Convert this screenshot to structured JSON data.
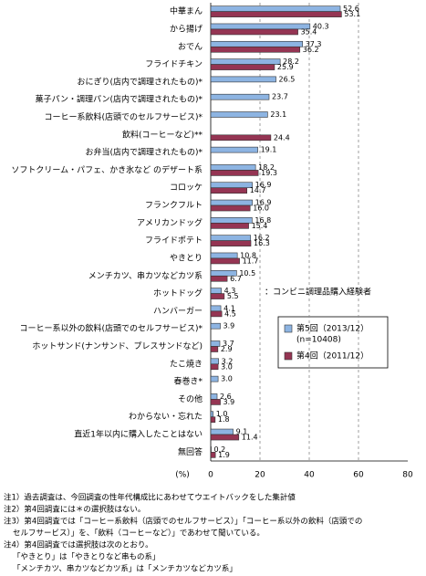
{
  "chart_data": {
    "type": "bar",
    "orientation": "horizontal",
    "categories": [
      "中華まん",
      "から揚げ",
      "おでん",
      "フライドチキン",
      "おにぎり(店内で調理されたもの)*",
      "菓子パン・調理パン(店内で調理されたもの)*",
      "コーヒー系飲料(店頭でのセルフサービス)*",
      "飲料(コーヒーなど)**",
      "お弁当(店内で調理されたもの)*",
      "ソフトクリーム・パフェ、かき氷など のデザート系",
      "コロッケ",
      "フランクフルト",
      "アメリカンドッグ",
      "フライドポテト",
      "やきとり",
      "メンチカツ、串カツなどカツ系",
      "ホットドッグ",
      "ハンバーガー",
      "コーヒー系以外の飲料(店頭でのセルフサービス)*",
      "ホットサンド(ナンサンド、プレスサンドなど)",
      "たこ焼き",
      "春巻き*",
      "その他",
      "わからない・忘れた",
      "直近1年以内に購入したことはない",
      "無回答"
    ],
    "series": [
      {
        "name": "第5回（2013/12）",
        "color": "#8db4e2",
        "values": [
          52.6,
          40.3,
          37.3,
          28.2,
          26.5,
          23.7,
          23.1,
          null,
          19.1,
          18.2,
          16.9,
          16.9,
          16.8,
          16.2,
          10.8,
          10.5,
          4.3,
          4.1,
          3.9,
          3.7,
          3.2,
          3.0,
          2.6,
          1.0,
          9.1,
          0.2
        ],
        "value_labels": [
          "52.6",
          "40.3",
          "37.3",
          "28.2",
          "26.5",
          "23.7",
          "23.1",
          null,
          "19.1",
          "18.2",
          "16.9",
          "16.9",
          "16.8",
          "16.2",
          "10.8",
          "10.5",
          "4.3",
          "4.1",
          "3.9",
          "3.7",
          "3.2",
          "3.0",
          "2.6",
          "1.0",
          "9.1",
          "0.2"
        ]
      },
      {
        "name": "第4回（2011/12）",
        "color": "#953553",
        "values": [
          53.1,
          35.4,
          36.2,
          25.9,
          null,
          null,
          null,
          24.4,
          null,
          19.3,
          14.7,
          16.0,
          15.4,
          16.3,
          11.7,
          6.7,
          5.5,
          4.5,
          null,
          2.9,
          3.0,
          null,
          3.9,
          1.8,
          11.4,
          1.9
        ],
        "value_labels": [
          "53.1",
          "35.4",
          "36.2",
          "25.9",
          null,
          null,
          null,
          "24.4",
          null,
          "19.3",
          "14.7",
          "16.0",
          "15.4",
          "16.3",
          "11.7",
          "6.7",
          "5.5",
          "4.5",
          null,
          "2.9",
          "3.0",
          null,
          "3.9",
          "1.8",
          "11.4",
          "1.9"
        ]
      }
    ],
    "legend_note": "(n=10408)",
    "annotation": "：コンビニ調理品購入経験者",
    "xlabel": "(%)",
    "xlim": [
      0,
      80
    ],
    "xticks": [
      0,
      20,
      40,
      60,
      80
    ],
    "grid": true,
    "notes": [
      "注1）過去調査は、今回調査の性年代構成比にあわせてウエイトバックをした集計値",
      "注2）第4回調査には＊の選択肢はない。",
      "注3）第4回調査では「コーヒー系飲料（店頭でのセルフサービス）」「コーヒー系以外の飲料（店頭での",
      "セルフサービス）」を、「飲料（コーヒーなど）」であわせて聞いている。",
      "注4）第4回調査では選択肢は次のとおり。",
      "「やきとり」は「やきとりなど串もの系」",
      "「メンチカツ、串カツなどカツ系」は「メンチカツなどカツ系」"
    ]
  }
}
